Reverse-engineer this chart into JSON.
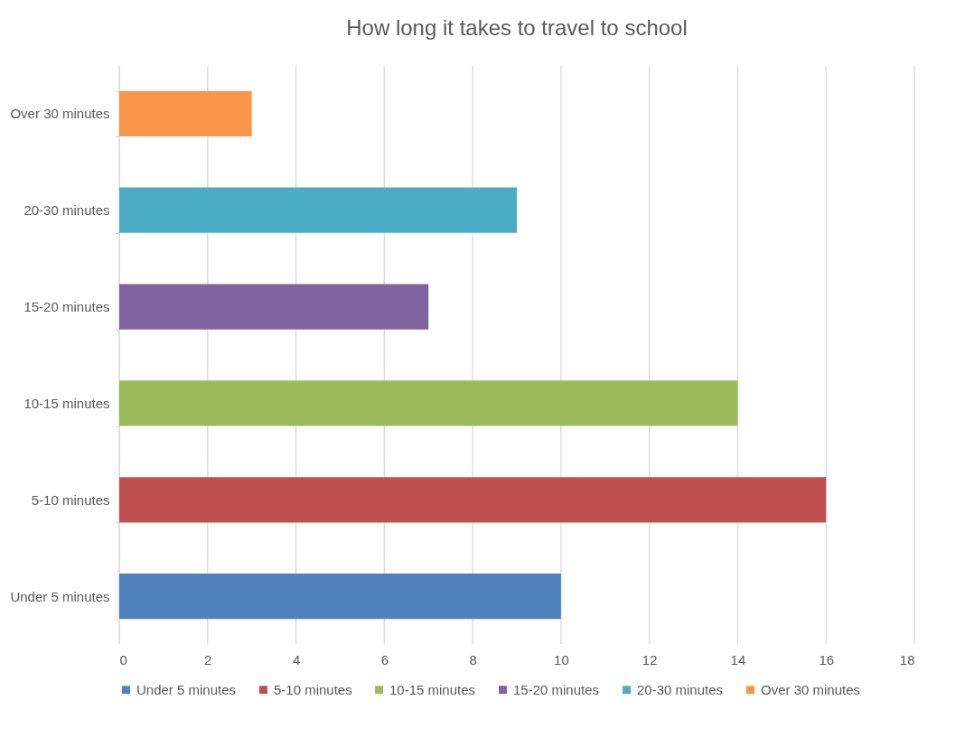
{
  "chart_data": {
    "type": "bar",
    "orientation": "horizontal",
    "title": "How long it takes to travel to school",
    "categories": [
      "Over 30 minutes",
      "20-30 minutes",
      "15-20 minutes",
      "10-15 minutes",
      "5-10 minutes",
      "Under 5 minutes"
    ],
    "series": [
      {
        "name": "Under 5 minutes",
        "color": "#4f81bd",
        "values": [
          null,
          null,
          null,
          null,
          null,
          10
        ]
      },
      {
        "name": "5-10 minutes",
        "color": "#c0504d",
        "values": [
          null,
          null,
          null,
          null,
          16,
          null
        ]
      },
      {
        "name": "10-15 minutes",
        "color": "#9bbb59",
        "values": [
          null,
          null,
          null,
          14,
          null,
          null
        ]
      },
      {
        "name": "15-20 minutes",
        "color": "#8064a2",
        "values": [
          null,
          null,
          7,
          null,
          null,
          null
        ]
      },
      {
        "name": "20-30 minutes",
        "color": "#4bacc6",
        "values": [
          null,
          9,
          null,
          null,
          null,
          null
        ]
      },
      {
        "name": "Over 30 minutes",
        "color": "#f79646",
        "values": [
          3,
          null,
          null,
          null,
          null,
          null
        ]
      }
    ],
    "xlim": [
      0,
      18
    ],
    "xticks": [
      0,
      2,
      4,
      6,
      8,
      10,
      12,
      14,
      16,
      18
    ],
    "grid": "x",
    "legend": "bottom"
  }
}
